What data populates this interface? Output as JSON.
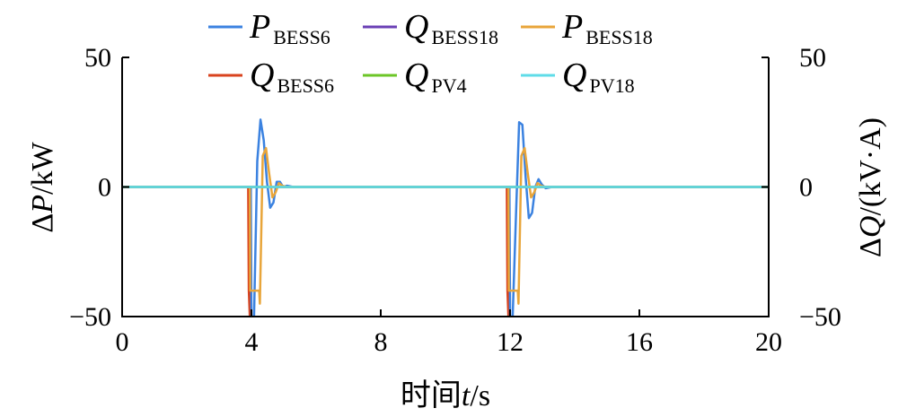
{
  "chart_data": {
    "type": "line",
    "xlabel": {
      "prefix": "时间",
      "var": "t",
      "unit": "/s"
    },
    "ylabel_left": {
      "delta": "Δ",
      "var": "P",
      "unit": "/kW"
    },
    "ylabel_right": {
      "delta": "Δ",
      "var": "Q",
      "unit": "/(kV·A)"
    },
    "xlim": [
      0,
      20
    ],
    "ylim_left": [
      -50,
      50
    ],
    "ylim_right": [
      -50,
      50
    ],
    "xticks": [
      "0",
      "4",
      "8",
      "12",
      "16",
      "20"
    ],
    "yticks_left": [
      "−50",
      "0",
      "50"
    ],
    "yticks_right": [
      "−50",
      "0",
      "50"
    ],
    "grid": false,
    "legend_placement": "top",
    "series": [
      {
        "main": "P",
        "sub": "BESS6",
        "color": "#3b82e0",
        "x": [
          0,
          3.98,
          4.0,
          4.08,
          4.18,
          4.28,
          4.38,
          4.48,
          4.58,
          4.68,
          4.78,
          4.88,
          4.98,
          5.1,
          5.3,
          20,
          11.98,
          12.0,
          12.08,
          12.18,
          12.28,
          12.38,
          12.48,
          12.58,
          12.68,
          12.78,
          12.88,
          12.98,
          13.1,
          13.3,
          20
        ],
        "y": [
          0,
          0,
          -50,
          -50,
          10,
          26,
          18,
          2,
          -8,
          -6,
          2,
          2,
          0,
          0.5,
          0,
          0,
          0,
          -50,
          -50,
          -12,
          25,
          24,
          4,
          -12,
          -10,
          0,
          3,
          1,
          -0.5,
          0,
          0
        ]
      },
      {
        "main": "Q",
        "sub": "BESS18",
        "color": "#6a3fb5",
        "x": [
          0,
          20
        ],
        "y": [
          0,
          0
        ]
      },
      {
        "main": "P",
        "sub": "BESS18",
        "color": "#e8a53a",
        "x": [
          0,
          3.95,
          3.96,
          4.24,
          4.26,
          4.35,
          4.45,
          4.55,
          4.65,
          4.75,
          4.85,
          4.95,
          5.1,
          5.3,
          20,
          11.95,
          11.96,
          12.24,
          12.26,
          12.35,
          12.45,
          12.55,
          12.65,
          12.75,
          12.85,
          12.95,
          13.1,
          20
        ],
        "y": [
          0,
          0,
          -40,
          -40,
          -45,
          12,
          15,
          5,
          -4,
          -2,
          1.5,
          0.5,
          0,
          0,
          0,
          0,
          -40,
          -40,
          -45,
          12,
          15,
          5,
          -4,
          -2,
          1.5,
          0.5,
          0,
          0
        ]
      },
      {
        "main": "Q",
        "sub": "BESS6",
        "color": "#d9431e",
        "x": [
          0,
          3.9,
          3.92,
          3.95,
          3.98,
          20,
          11.9,
          11.92,
          11.95,
          11.98,
          20
        ],
        "y": [
          0,
          0,
          -40,
          -50,
          0,
          0,
          0,
          -40,
          -50,
          0,
          0
        ]
      },
      {
        "main": "Q",
        "sub": "PV4",
        "color": "#6cc627",
        "x": [
          0,
          20
        ],
        "y": [
          0,
          0
        ]
      },
      {
        "main": "Q",
        "sub": "PV18",
        "color": "#5fdce8",
        "x": [
          0,
          20
        ],
        "y": [
          0,
          0
        ]
      }
    ]
  }
}
